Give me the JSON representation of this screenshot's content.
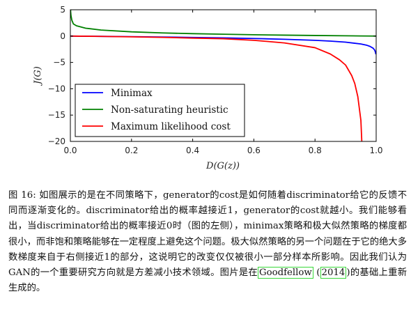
{
  "chart_data": {
    "type": "line",
    "xlabel": "D(G(z))",
    "ylabel": "J(G)",
    "xlim": [
      0.0,
      1.0
    ],
    "ylim": [
      -20,
      5
    ],
    "xticks": [
      "0.0",
      "0.2",
      "0.4",
      "0.6",
      "0.8",
      "1.0"
    ],
    "yticks": [
      "5",
      "0",
      "−5",
      "−10",
      "−15",
      "−20"
    ],
    "legend_position": "lower-left",
    "grid": false,
    "series": [
      {
        "name": "Minimax",
        "color": "#0000ff",
        "x": [
          0.0,
          0.1,
          0.2,
          0.3,
          0.4,
          0.5,
          0.6,
          0.7,
          0.8,
          0.85,
          0.9,
          0.95,
          0.97,
          0.98,
          0.99,
          0.995,
          0.998,
          0.999
        ],
        "y": [
          0.0,
          -0.053,
          -0.112,
          -0.178,
          -0.255,
          -0.347,
          -0.458,
          -0.602,
          -0.805,
          -0.949,
          -1.151,
          -1.498,
          -1.753,
          -1.956,
          -2.303,
          -2.649,
          -3.107,
          -3.454
        ]
      },
      {
        "name": "Non-saturating heuristic",
        "color": "#008000",
        "x": [
          0.0007,
          0.001,
          0.002,
          0.005,
          0.01,
          0.02,
          0.05,
          0.1,
          0.2,
          0.3,
          0.4,
          0.5,
          0.6,
          0.7,
          0.8,
          0.9,
          0.95,
          0.99,
          1.0
        ],
        "y": [
          5.0,
          4.6,
          3.9,
          3.0,
          2.3,
          1.96,
          1.5,
          1.15,
          0.805,
          0.6,
          0.46,
          0.35,
          0.255,
          0.178,
          0.112,
          0.053,
          0.026,
          0.005,
          0.0
        ]
      },
      {
        "name": "Maximum likelihood cost",
        "color": "#ff0000",
        "x": [
          0.0,
          0.1,
          0.2,
          0.3,
          0.4,
          0.5,
          0.6,
          0.7,
          0.8,
          0.85,
          0.88,
          0.9,
          0.92,
          0.93,
          0.94,
          0.95,
          0.953
        ],
        "y": [
          0.0,
          -0.06,
          -0.14,
          -0.24,
          -0.38,
          -0.5,
          -0.8,
          -1.3,
          -2.2,
          -3.4,
          -4.5,
          -5.5,
          -7.5,
          -9.0,
          -11.5,
          -16.0,
          -20.0
        ]
      }
    ]
  },
  "caption": {
    "text1": "图 16: 如图展示的是在不同策略下，generator的cost是如何随着discriminator给它的反馈不同而逐渐变化的。discriminator给出的概率越接近1，generator的cost就越小。我们能够看出，当discriminator给出的概率接近0时（图的左侧），minimax策略和极大似然策略的梯度都很小，而非饱和策略能够在一定程度上避免这个问题。极大似然策略的另一个问题在于它的绝大多数梯度来自于右侧接近1的部分，这说明它的改变仅仅被很小一部分样本所影响。因此我们认为GAN的一个重要研究方向就是方差减小技术领域。图片是在",
    "ref_author": "Goodfellow",
    "ref_year": "2014",
    "text2": "的基础上重新生成的。"
  }
}
